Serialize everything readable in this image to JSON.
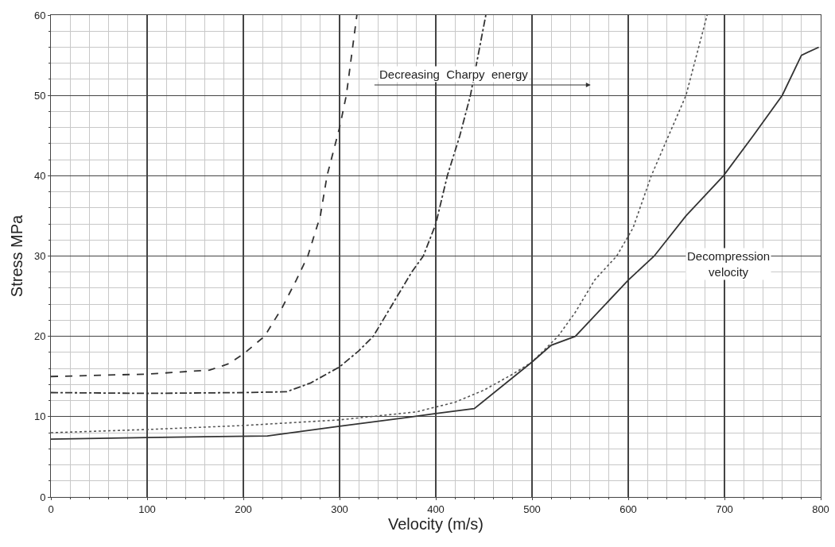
{
  "chart_data": {
    "type": "line",
    "xlabel": "Velocity (m/s)",
    "ylabel": "Stress MPa",
    "xlim": [
      0,
      800
    ],
    "xticks": [
      0,
      100,
      200,
      300,
      400,
      500,
      600,
      700,
      800
    ],
    "ylim": [
      0,
      60
    ],
    "yticks": [
      0,
      10,
      20,
      30,
      40,
      50,
      60
    ],
    "grid": true,
    "marker": "none",
    "annotations": [
      "Decompression\nvelocity",
      "Decreasing  Charpy  energy"
    ],
    "series": [
      {
        "color": "#333333",
        "line_style": "dashed",
        "x": [
          0,
          100,
          165,
          185,
          200,
          222,
          240,
          255,
          267,
          280,
          287,
          300,
          307,
          318
        ],
        "values": [
          15,
          15.3,
          15.8,
          16.6,
          17.8,
          20,
          23.5,
          27,
          30,
          35,
          40,
          46,
          50,
          60
        ]
      },
      {
        "color": "#333333",
        "line_style": "dashdot",
        "x": [
          0,
          100,
          200,
          245,
          270,
          300,
          320,
          335,
          360,
          375,
          387,
          400,
          412,
          425,
          436,
          452
        ],
        "values": [
          13,
          12.9,
          13,
          13.1,
          14.2,
          16.2,
          18.2,
          20,
          25,
          28,
          30,
          34,
          40,
          45,
          50,
          60
        ]
      },
      {
        "color": "#555555",
        "line_style": "dotted",
        "x": [
          0,
          100,
          200,
          300,
          380,
          420,
          450,
          480,
          500,
          527,
          545,
          565,
          588,
          605,
          624,
          642,
          660,
          671,
          682
        ],
        "values": [
          8,
          8.4,
          8.9,
          9.6,
          10.6,
          11.8,
          13.3,
          15.3,
          16.8,
          20,
          23,
          27,
          30,
          33.5,
          40,
          45,
          50,
          55,
          60
        ]
      },
      {
        "color": "#333333",
        "line_style": "solid",
        "x": [
          0,
          100,
          225,
          300,
          370,
          400,
          440,
          500,
          520,
          545,
          600,
          627,
          660,
          699,
          730,
          760,
          780,
          798
        ],
        "values": [
          7.2,
          7.4,
          7.6,
          8.8,
          9.9,
          10.4,
          11,
          16.8,
          18.9,
          20,
          27,
          30,
          35,
          40,
          45,
          50,
          55,
          56
        ]
      }
    ]
  }
}
